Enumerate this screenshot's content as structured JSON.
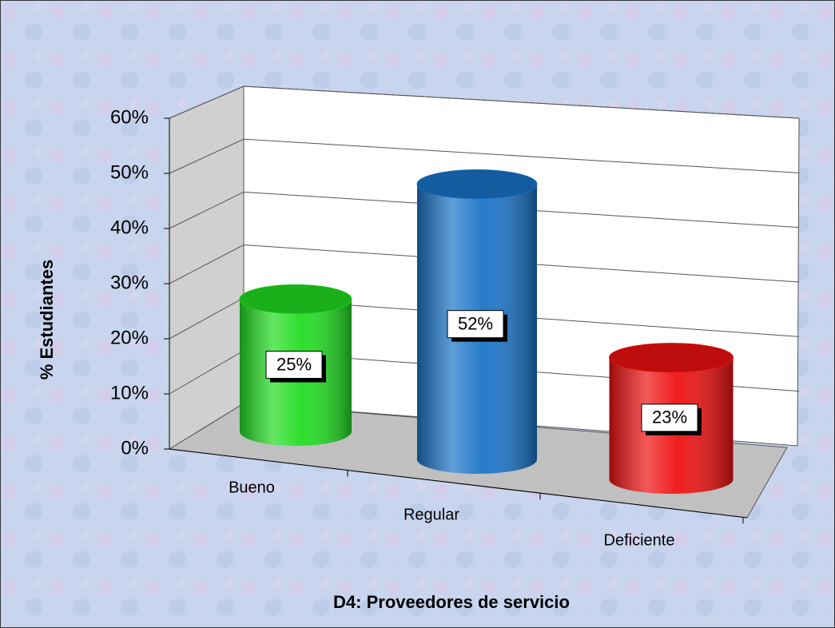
{
  "chart_data": {
    "type": "bar3d",
    "x_label": "D4: Proveedores de servicio",
    "y_label": "% Estudiantes",
    "categories": [
      "Bueno",
      "Regular",
      "Deficiente"
    ],
    "values": [
      25,
      52,
      23
    ],
    "value_labels": [
      "25%",
      "52%",
      "23%"
    ],
    "colors": [
      "#22dd22",
      "#1a74c8",
      "#ee1111"
    ],
    "ylim": [
      0,
      60
    ],
    "yticks": [
      {
        "value": 0,
        "label": "0%"
      },
      {
        "value": 10,
        "label": "10%"
      },
      {
        "value": 20,
        "label": "20%"
      },
      {
        "value": 30,
        "label": "30%"
      },
      {
        "value": 40,
        "label": "40%"
      },
      {
        "value": 50,
        "label": "50%"
      },
      {
        "value": 60,
        "label": "60%"
      }
    ],
    "grid": true
  }
}
